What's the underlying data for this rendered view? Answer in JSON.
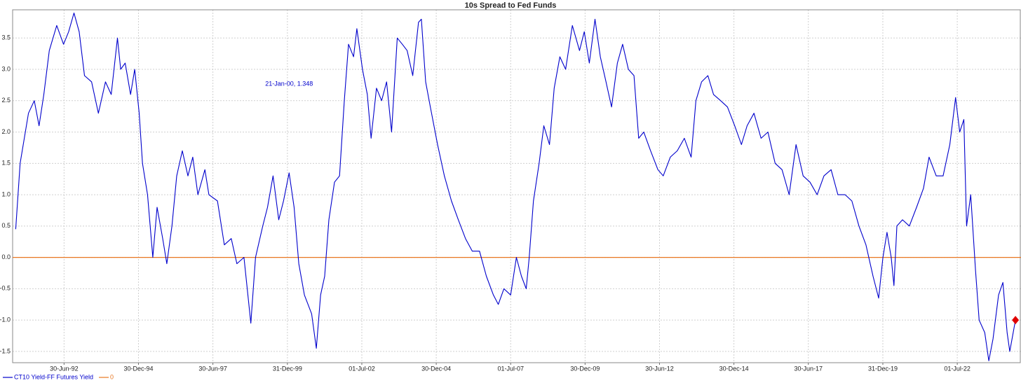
{
  "chart_data": {
    "type": "line",
    "title": "10s Spread to Fed Funds",
    "x": [
      "1990-11-15",
      "1991-01-08",
      "1991-04-20",
      "1991-07-01",
      "1991-08-28",
      "1991-10-26",
      "1992-01-01",
      "1992-04-01",
      "1992-06-24",
      "1992-08-25",
      "1992-10-30",
      "1993-01-01",
      "1993-03-08",
      "1993-06-03",
      "1993-08-25",
      "1993-11-20",
      "1994-01-30",
      "1994-04-16",
      "1994-05-26",
      "1994-07-20",
      "1994-09-24",
      "1994-11-14",
      "1995-01-08",
      "1995-02-17",
      "1995-04-20",
      "1995-06-24",
      "1995-08-15",
      "1995-10-23",
      "1995-12-13",
      "1996-02-14",
      "1996-04-12",
      "1996-06-20",
      "1996-08-28",
      "1996-10-26",
      "1996-12-28",
      "1997-03-24",
      "1997-05-12",
      "1997-08-25",
      "1997-11-17",
      "1998-02-10",
      "1998-04-20",
      "1998-07-16",
      "1998-10-08",
      "1998-12-05",
      "1999-03-04",
      "1999-05-01",
      "1999-07-08",
      "1999-09-16",
      "1999-11-13",
      "2000-01-21",
      "2000-03-22",
      "2000-05-19",
      "2000-07-27",
      "2000-10-23",
      "2000-12-20",
      "2001-02-10",
      "2001-04-01",
      "2001-05-23",
      "2001-07-31",
      "2001-10-01",
      "2001-11-28",
      "2002-01-19",
      "2002-03-22",
      "2002-05-01",
      "2002-07-09",
      "2002-09-06",
      "2002-10-23",
      "2002-12-28",
      "2003-03-01",
      "2003-05-01",
      "2003-07-01",
      "2003-09-09",
      "2003-11-10",
      "2004-01-08",
      "2004-03-17",
      "2004-05-26",
      "2004-07-01",
      "2004-08-22",
      "2004-10-19",
      "2005-01-15",
      "2005-04-09",
      "2005-07-05",
      "2005-09-27",
      "2005-12-24",
      "2006-03-17",
      "2006-06-14",
      "2006-09-06",
      "2006-12-01",
      "2007-01-30",
      "2007-04-09",
      "2007-07-01",
      "2007-09-09",
      "2007-11-10",
      "2008-01-08",
      "2008-02-14",
      "2008-04-05",
      "2008-06-14",
      "2008-08-11",
      "2008-10-19",
      "2008-12-16",
      "2009-02-24",
      "2009-05-05",
      "2009-07-27",
      "2009-10-23",
      "2009-12-20",
      "2010-02-20",
      "2010-05-01",
      "2010-07-05",
      "2010-09-13",
      "2010-11-20",
      "2011-01-30",
      "2011-04-05",
      "2011-06-14",
      "2011-08-22",
      "2011-10-19",
      "2011-12-20",
      "2012-03-13",
      "2012-06-10",
      "2012-08-15",
      "2012-11-10",
      "2013-02-03",
      "2013-05-01",
      "2013-07-23",
      "2013-09-20",
      "2013-11-28",
      "2014-02-14",
      "2014-04-24",
      "2014-07-20",
      "2014-10-12",
      "2015-01-08",
      "2015-04-01",
      "2015-06-10",
      "2015-09-02",
      "2015-11-28",
      "2016-02-20",
      "2016-05-19",
      "2016-08-11",
      "2016-11-07",
      "2017-01-30",
      "2017-04-27",
      "2017-07-20",
      "2017-10-16",
      "2018-01-08",
      "2018-04-05",
      "2018-06-28",
      "2018-09-24",
      "2018-12-16",
      "2019-03-13",
      "2019-06-07",
      "2019-09-02",
      "2019-11-10",
      "2020-01-01",
      "2020-02-20",
      "2020-04-12",
      "2020-05-15",
      "2020-06-20",
      "2020-08-28",
      "2020-11-20",
      "2021-02-17",
      "2021-05-12",
      "2021-07-20",
      "2021-10-16",
      "2022-01-08",
      "2022-04-01",
      "2022-06-10",
      "2022-07-31",
      "2022-09-20",
      "2022-10-23",
      "2022-12-13",
      "2023-02-10",
      "2023-03-26",
      "2023-06-03",
      "2023-07-23",
      "2023-09-13",
      "2023-11-20",
      "2024-01-12",
      "2024-03-04",
      "2024-04-05",
      "2024-06-14"
    ],
    "series": [
      {
        "name": "CT10 Yield-FF Futures Yield",
        "color": "#0000cc",
        "values": [
          0.45,
          1.5,
          2.3,
          2.5,
          2.1,
          2.6,
          3.3,
          3.7,
          3.4,
          3.6,
          3.9,
          3.6,
          2.9,
          2.8,
          2.3,
          2.8,
          2.6,
          3.5,
          3.0,
          3.1,
          2.6,
          3.0,
          2.3,
          1.5,
          1.0,
          0.0,
          0.8,
          0.3,
          -0.1,
          0.5,
          1.3,
          1.7,
          1.3,
          1.6,
          1.0,
          1.4,
          1.0,
          0.9,
          0.2,
          0.3,
          -0.1,
          0.0,
          -1.05,
          0.0,
          0.5,
          0.8,
          1.3,
          0.6,
          0.9,
          1.348,
          0.8,
          -0.1,
          -0.6,
          -0.9,
          -1.45,
          -0.6,
          -0.3,
          0.6,
          1.2,
          1.3,
          2.5,
          3.4,
          3.2,
          3.65,
          3.0,
          2.6,
          1.9,
          2.7,
          2.5,
          2.8,
          2.0,
          3.5,
          3.4,
          3.3,
          2.9,
          3.75,
          3.8,
          2.8,
          2.4,
          1.8,
          1.3,
          0.9,
          0.6,
          0.3,
          0.1,
          0.1,
          -0.3,
          -0.6,
          -0.75,
          -0.5,
          -0.6,
          0.0,
          -0.3,
          -0.5,
          0.0,
          0.9,
          1.5,
          2.1,
          1.8,
          2.7,
          3.2,
          3.0,
          3.7,
          3.3,
          3.6,
          3.1,
          3.8,
          3.2,
          2.8,
          2.4,
          3.1,
          3.4,
          3.0,
          2.9,
          1.9,
          2.0,
          1.7,
          1.4,
          1.3,
          1.6,
          1.7,
          1.9,
          1.6,
          2.5,
          2.8,
          2.9,
          2.6,
          2.5,
          2.4,
          2.1,
          1.8,
          2.1,
          2.3,
          1.9,
          2.0,
          1.5,
          1.4,
          1.0,
          1.8,
          1.3,
          1.2,
          1.0,
          1.3,
          1.4,
          1.0,
          1.0,
          0.9,
          0.5,
          0.2,
          -0.3,
          -0.65,
          0.0,
          0.4,
          0.0,
          -0.45,
          0.5,
          0.6,
          0.5,
          0.8,
          1.1,
          1.6,
          1.3,
          1.3,
          1.8,
          2.55,
          2.0,
          2.2,
          0.5,
          1.0,
          -0.2,
          -1.0,
          -1.2,
          -1.65,
          -1.3,
          -0.6,
          -0.4,
          -1.2,
          -1.5,
          -1.0
        ]
      }
    ],
    "reference_lines": [
      {
        "name": "0",
        "value": 0,
        "color": "#e87722"
      }
    ],
    "last_marker_color": "#e00000",
    "annotation": {
      "x": "2000-01-21",
      "value": 1.348,
      "label": "21-Jan-00, 1.348",
      "color": "#0000cc"
    },
    "xlim": [
      "1990-10-08",
      "2024-08-21"
    ],
    "xticks": [
      {
        "value": "1992-06-30",
        "label": "30-Jun-92"
      },
      {
        "value": "1994-12-30",
        "label": "30-Dec-94"
      },
      {
        "value": "1997-06-30",
        "label": "30-Jun-97"
      },
      {
        "value": "1999-12-31",
        "label": "31-Dec-99"
      },
      {
        "value": "2002-07-01",
        "label": "01-Jul-02"
      },
      {
        "value": "2004-12-30",
        "label": "30-Dec-04"
      },
      {
        "value": "2007-07-01",
        "label": "01-Jul-07"
      },
      {
        "value": "2009-12-30",
        "label": "30-Dec-09"
      },
      {
        "value": "2012-06-30",
        "label": "30-Jun-12"
      },
      {
        "value": "2014-12-30",
        "label": "30-Dec-14"
      },
      {
        "value": "2017-06-30",
        "label": "30-Jun-17"
      },
      {
        "value": "2019-12-31",
        "label": "31-Dec-19"
      },
      {
        "value": "2022-07-01",
        "label": "01-Jul-22"
      }
    ],
    "ylim": [
      -1.68,
      3.95
    ],
    "yticks": [
      3.5,
      {
        "value": 3,
        "label": "3.0"
      },
      2.5,
      {
        "value": 2,
        "label": "2.0"
      },
      1.5,
      {
        "value": 1,
        "label": "1.0"
      },
      0.5,
      {
        "value": 0,
        "label": "0.0"
      },
      -0.5,
      {
        "value": -1,
        "label": "-1.0"
      },
      -1.5
    ],
    "grid": true
  }
}
